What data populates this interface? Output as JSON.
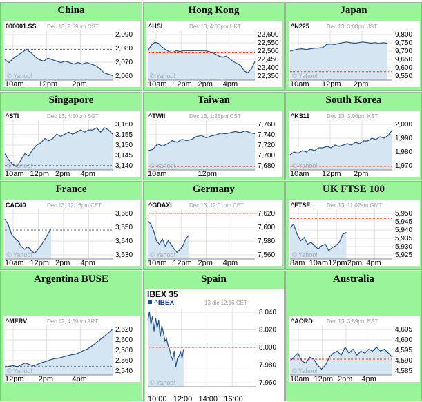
{
  "colors": {
    "cell_bg": "#9af59a",
    "line": "#1f4e8c",
    "fill": "#d5e6f2",
    "ref": "#d0452b",
    "grid": "#e2e2e2"
  },
  "markets": [
    {
      "title": "China",
      "symbol": "000001.SS",
      "stamp": "Dec 13, 2:59pm CST",
      "watermark": "© Yahoo!",
      "yticks": [
        "2,090",
        "2,080",
        "2,070",
        "2,060"
      ],
      "xticks": [
        "10am",
        "12pm",
        "2pm"
      ],
      "chart_data": {
        "type": "area",
        "y_range": [
          2058,
          2092
        ],
        "ref": 2079,
        "x_extent": 1.0,
        "values": [
          2072,
          2070,
          2073,
          2075,
          2077,
          2079,
          2077,
          2074,
          2072,
          2071,
          2073,
          2072,
          2071,
          2070,
          2071,
          2070,
          2069,
          2070,
          2069,
          2070,
          2069,
          2068,
          2066,
          2063,
          2062,
          2061
        ]
      }
    },
    {
      "title": "Hong Kong",
      "symbol": "^HSI",
      "stamp": "Dec 13, 4:00pm HKT",
      "watermark": "© Yahoo!",
      "yticks": [
        "22,600",
        "22,550",
        "22,500",
        "22,450",
        "22,400",
        "22,350"
      ],
      "xticks": [
        "10am",
        "12pm",
        "2pm",
        "4pm"
      ],
      "chart_data": {
        "type": "area",
        "y_range": [
          22340,
          22610
        ],
        "ref": 22488,
        "x_extent": 1.0,
        "values": [
          22500,
          22530,
          22545,
          22540,
          22520,
          22505,
          22495,
          22490,
          22500,
          22495,
          22500,
          22500,
          22500,
          22500,
          22500,
          22500,
          22500,
          22495,
          22490,
          22480,
          22470,
          22465,
          22470,
          22455,
          22440,
          22430,
          22420,
          22390,
          22380,
          22400,
          22440
        ]
      }
    },
    {
      "title": "Japan",
      "symbol": "^N225",
      "stamp": "Dec 13, 3:08pm JST",
      "watermark": "© Yahoo!",
      "yticks": [
        "9,800",
        "9,750",
        "9,700",
        "9,650",
        "9,600",
        "9,550"
      ],
      "xticks": [
        "10am",
        "12pm",
        "2pm"
      ],
      "chart_data": {
        "type": "area",
        "y_range": [
          9545,
          9810
        ],
        "ref": 9590,
        "x_extent": 0.95,
        "values": [
          9700,
          9705,
          9710,
          9712,
          9708,
          9712,
          9715,
          9716,
          9718,
          9735,
          9738,
          9735,
          9740,
          9745,
          9748,
          9744,
          9742,
          9745,
          9748,
          9745,
          9742,
          9745,
          9740,
          9744,
          9742
        ]
      }
    },
    {
      "title": "Singapore",
      "symbol": "^STI",
      "stamp": "Dec 13, 4:50pm SGT",
      "watermark": "© Yahoo!",
      "yticks": [
        "3,160",
        "3,155",
        "3,150",
        "3,145",
        "3,140"
      ],
      "xticks": [
        "10am",
        "12pm",
        "2pm",
        "4pm"
      ],
      "chart_data": {
        "type": "area",
        "y_range": [
          3138.5,
          3161.5
        ],
        "ref": 3140.5,
        "x_extent": 1.0,
        "values": [
          3146,
          3143,
          3141,
          3140,
          3143,
          3146,
          3145,
          3148,
          3150,
          3151,
          3153,
          3152,
          3153,
          3155,
          3154,
          3155,
          3156,
          3155,
          3156,
          3157,
          3156,
          3157,
          3157,
          3158,
          3156,
          3158,
          3157,
          3155
        ]
      }
    },
    {
      "title": "Taiwan",
      "symbol": "^TWII",
      "stamp": "Dec 13, 1:25pm CST",
      "watermark": "© Yahoo!",
      "yticks": [
        "7,760",
        "7,740",
        "7,720",
        "7,700",
        "7,680"
      ],
      "xticks": [
        "10am",
        "12pm"
      ],
      "chart_data": {
        "type": "area",
        "y_range": [
          7676,
          7764
        ],
        "ref": 7682,
        "x_extent": 1.0,
        "values": [
          7710,
          7712,
          7722,
          7718,
          7722,
          7728,
          7725,
          7730,
          7728,
          7730,
          7735,
          7737,
          7733,
          7736,
          7738,
          7741,
          7740,
          7742,
          7744,
          7742,
          7745,
          7742,
          7740
        ]
      }
    },
    {
      "title": "South Korea",
      "symbol": "^KS11",
      "stamp": "Dec 13, 3:00pm KST",
      "watermark": "© Yahoo!",
      "yticks": [
        "2,000",
        "1,990",
        "1,980",
        "1,970"
      ],
      "xticks": [
        "10am",
        "12pm",
        "2pm"
      ],
      "chart_data": {
        "type": "area",
        "y_range": [
          1967,
          2003
        ],
        "ref": 1969.5,
        "x_extent": 1.0,
        "values": [
          1978,
          1980,
          1979,
          1981,
          1980,
          1982,
          1981,
          1983,
          1983,
          1984,
          1983,
          1985,
          1984,
          1985,
          1986,
          1985,
          1987,
          1986,
          1988,
          1988,
          1990,
          1989,
          1991,
          1990,
          1992,
          1996
        ]
      }
    },
    {
      "title": "France",
      "symbol": "CAC40",
      "stamp": "Dec 13, 12:16pm CET",
      "watermark": "© Yahoo!",
      "yticks": [
        "3,660",
        "3,650",
        "3,640",
        "3,630"
      ],
      "xticks": [
        "10am",
        "12pm",
        "2pm",
        "4pm"
      ],
      "chart_data": {
        "type": "area",
        "y_range": [
          3627,
          3663
        ],
        "ref": 3648,
        "x_extent": 0.43,
        "values": [
          3656,
          3652,
          3645,
          3642,
          3640,
          3636,
          3634,
          3636,
          3633,
          3631,
          3634,
          3637,
          3641,
          3645,
          3649
        ]
      }
    },
    {
      "title": "Germany",
      "symbol": "^GDAXI",
      "stamp": "Dec 13, 12:01pm CET",
      "watermark": "© Yahoo!",
      "yticks": [
        "7,620",
        "7,600",
        "7,580",
        "7,560"
      ],
      "xticks": [
        "10am",
        "12pm",
        "2pm",
        "4pm"
      ],
      "chart_data": {
        "type": "area",
        "y_range": [
          7553,
          7627
        ],
        "ref": 7621,
        "x_extent": 0.38,
        "values": [
          7610,
          7605,
          7595,
          7580,
          7575,
          7583,
          7572,
          7580,
          7575,
          7568,
          7563,
          7567,
          7572,
          7582,
          7588
        ]
      }
    },
    {
      "title": "UK FTSE 100",
      "symbol": "^FTSE",
      "stamp": "Dec 13, 11:02am GMT",
      "watermark": "© Yahoo!",
      "yticks": [
        "5,950",
        "5,945",
        "5,940",
        "5,935",
        "5,930",
        "5,925"
      ],
      "xticks": [
        "8am",
        "10am",
        "12pm",
        "2pm",
        "4pm"
      ],
      "chart_data": {
        "type": "area",
        "y_range": [
          5923,
          5953
        ],
        "ref": 5947.5,
        "x_extent": 0.55,
        "values": [
          5942,
          5944,
          5938,
          5934,
          5936,
          5932,
          5933,
          5931,
          5929,
          5931,
          5932,
          5928,
          5930,
          5931,
          5933,
          5938,
          5939
        ]
      }
    },
    {
      "title": "Argentina BUSE",
      "symbol": "^MERV",
      "stamp": "Dec 12, 4:59pm ART",
      "watermark": "© Yahoo!",
      "yticks": [
        "2,620",
        "2,600",
        "2,580",
        "2,560",
        "2,540"
      ],
      "xticks": [
        "12pm",
        "2pm",
        "4pm"
      ],
      "chart_data": {
        "type": "area",
        "y_range": [
          2537,
          2628
        ],
        "ref": 2553,
        "x_extent": 1.0,
        "values": [
          2551,
          2553,
          2554,
          2552,
          2556,
          2559,
          2556,
          2554,
          2557,
          2560,
          2562,
          2565,
          2567,
          2568,
          2570,
          2572,
          2574,
          2575,
          2578,
          2582,
          2585,
          2590,
          2596,
          2602,
          2608,
          2614,
          2621
        ]
      }
    },
    {
      "title": "Spain",
      "heading": "IBEX 35",
      "symbol": "^IBEX",
      "stamp": "13 dic 12:16 CET",
      "watermark": "© Yahoo!",
      "yticks": [
        "8.040",
        "8.020",
        "8.000",
        "7.980",
        "7.960"
      ],
      "xticks": [
        "10:00",
        "12:00",
        "14:00",
        "16:00"
      ],
      "chart_data": {
        "type": "area",
        "y_range": [
          7956,
          8044
        ],
        "ref": 8000,
        "x_extent": 0.33,
        "values": [
          8030,
          8040,
          8026,
          8035,
          8018,
          8033,
          8022,
          8030,
          8012,
          8024,
          8017,
          8007,
          8010,
          8002,
          7998,
          7990,
          7986,
          7996,
          7978,
          7988,
          7990,
          7995,
          7988,
          7998
        ]
      }
    },
    {
      "title": "Australia",
      "symbol": "^AORD",
      "stamp": "Dec 13, 3:59pm EST",
      "watermark": "© Yahoo!",
      "yticks": [
        "4,605",
        "4,600",
        "4,595",
        "4,590",
        "4,585"
      ],
      "xticks": [
        "10am",
        "12pm",
        "2pm",
        "4pm"
      ],
      "chart_data": {
        "type": "area",
        "y_range": [
          4583,
          4608
        ],
        "ref": 4591,
        "x_extent": 1.0,
        "values": [
          4590,
          4592,
          4594,
          4590,
          4589,
          4592,
          4591,
          4588,
          4586,
          4588,
          4592,
          4594,
          4595,
          4593,
          4597,
          4594,
          4596,
          4593,
          4595,
          4594,
          4596,
          4595,
          4597,
          4595,
          4596,
          4594,
          4592
        ]
      }
    }
  ]
}
